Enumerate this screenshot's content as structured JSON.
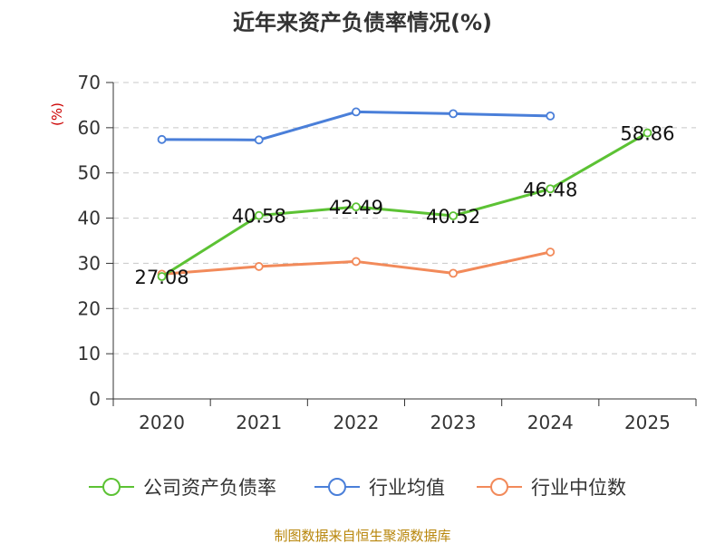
{
  "chart_data": {
    "type": "line",
    "title": "近年来资产负债率情况(%)",
    "ylabel": "(%)",
    "xlabel": "",
    "categories": [
      "2020",
      "2021",
      "2022",
      "2023",
      "2024",
      "2025"
    ],
    "ylim": [
      0,
      70
    ],
    "yticks": [
      0,
      10,
      20,
      30,
      40,
      50,
      60,
      70
    ],
    "grid": true,
    "legend_position": "bottom",
    "series": [
      {
        "name": "公司资产负债率",
        "color": "#5cc234",
        "values": [
          27.08,
          40.58,
          42.49,
          40.52,
          46.48,
          58.86
        ],
        "labels": [
          "27.08",
          "40.58",
          "42.49",
          "40.52",
          "46.48",
          "58.86"
        ]
      },
      {
        "name": "行业均值",
        "color": "#4a7fd9",
        "values": [
          57.4,
          57.3,
          63.5,
          63.1,
          62.6,
          null
        ]
      },
      {
        "name": "行业中位数",
        "color": "#f28a5a",
        "values": [
          27.6,
          29.3,
          30.4,
          27.8,
          32.5,
          null
        ]
      }
    ]
  },
  "source_text": "制图数据来自恒生聚源数据库"
}
